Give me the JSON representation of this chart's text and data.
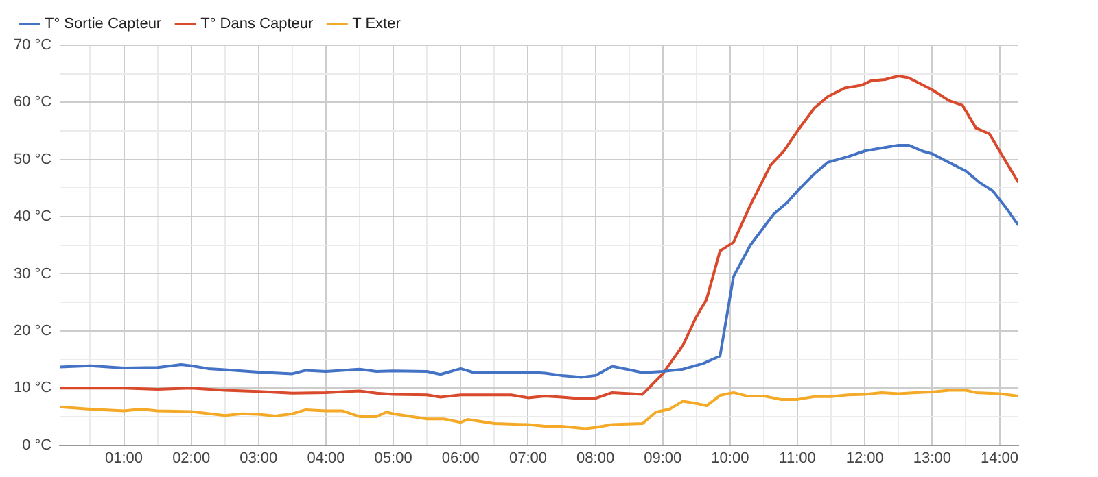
{
  "chart_data": {
    "type": "line",
    "legend": "top left",
    "grid": true,
    "marker": "none",
    "line_style": "solid",
    "xlim": [
      0.05,
      14.28
    ],
    "xticks": [
      {
        "value": 0.5,
        "label": null
      },
      {
        "value": 1,
        "label": "01:00"
      },
      {
        "value": 1.5,
        "label": null
      },
      {
        "value": 2,
        "label": "02:00"
      },
      {
        "value": 2.5,
        "label": null
      },
      {
        "value": 3,
        "label": "03:00"
      },
      {
        "value": 3.5,
        "label": null
      },
      {
        "value": 4,
        "label": "04:00"
      },
      {
        "value": 4.5,
        "label": null
      },
      {
        "value": 5,
        "label": "05:00"
      },
      {
        "value": 5.5,
        "label": null
      },
      {
        "value": 6,
        "label": "06:00"
      },
      {
        "value": 6.5,
        "label": null
      },
      {
        "value": 7,
        "label": "07:00"
      },
      {
        "value": 7.5,
        "label": null
      },
      {
        "value": 8,
        "label": "08:00"
      },
      {
        "value": 8.5,
        "label": null
      },
      {
        "value": 9,
        "label": "09:00"
      },
      {
        "value": 9.5,
        "label": null
      },
      {
        "value": 10,
        "label": "10:00"
      },
      {
        "value": 10.5,
        "label": null
      },
      {
        "value": 11,
        "label": "11:00"
      },
      {
        "value": 11.5,
        "label": null
      },
      {
        "value": 12,
        "label": "12:00"
      },
      {
        "value": 12.5,
        "label": null
      },
      {
        "value": 13,
        "label": "13:00"
      },
      {
        "value": 13.5,
        "label": null
      },
      {
        "value": 14,
        "label": "14:00"
      }
    ],
    "ylim": [
      0,
      70
    ],
    "yticks": [
      {
        "value": 0,
        "label": "0 °C"
      },
      {
        "value": 5,
        "label": null
      },
      {
        "value": 10,
        "label": "10 °C"
      },
      {
        "value": 15,
        "label": null
      },
      {
        "value": 20,
        "label": "20 °C"
      },
      {
        "value": 25,
        "label": null
      },
      {
        "value": 30,
        "label": "30 °C"
      },
      {
        "value": 35,
        "label": null
      },
      {
        "value": 40,
        "label": "40 °C"
      },
      {
        "value": 45,
        "label": null
      },
      {
        "value": 50,
        "label": "50 °C"
      },
      {
        "value": 55,
        "label": null
      },
      {
        "value": 60,
        "label": "60 °C"
      },
      {
        "value": 65,
        "label": null
      },
      {
        "value": 70,
        "label": "70 °C"
      }
    ],
    "series": [
      {
        "name": "T° Sortie Capteur",
        "color": "#4472c4",
        "x": [
          0.05,
          0.5,
          1,
          1.5,
          1.85,
          2,
          2.25,
          2.5,
          3,
          3.5,
          3.7,
          4,
          4.5,
          4.75,
          5,
          5.5,
          5.7,
          6,
          6.2,
          6.5,
          7,
          7.25,
          7.5,
          7.8,
          8,
          8.25,
          8.5,
          8.7,
          9,
          9.3,
          9.6,
          9.85,
          10.05,
          10.3,
          10.65,
          10.85,
          11,
          11.25,
          11.45,
          11.75,
          12,
          12.25,
          12.5,
          12.65,
          12.85,
          13,
          13.25,
          13.5,
          13.7,
          13.9,
          14.1,
          14.28
        ],
        "values": [
          13.7,
          13.9,
          13.5,
          13.6,
          14.1,
          13.9,
          13.4,
          13.2,
          12.8,
          12.5,
          13.1,
          12.9,
          13.3,
          12.9,
          13,
          12.9,
          12.4,
          13.4,
          12.7,
          12.7,
          12.8,
          12.6,
          12.2,
          11.9,
          12.2,
          13.8,
          13.2,
          12.7,
          12.9,
          13.3,
          14.3,
          15.6,
          29.5,
          35,
          40.5,
          42.5,
          44.5,
          47.5,
          49.5,
          50.5,
          51.5,
          52,
          52.5,
          52.5,
          51.5,
          51,
          49.5,
          48,
          46,
          44.5,
          41.5,
          38.5
        ]
      },
      {
        "name": "T° Dans Capteur",
        "color": "#d9492b",
        "x": [
          0.05,
          0.5,
          1,
          1.5,
          2,
          2.5,
          3,
          3.5,
          4,
          4.5,
          4.75,
          5,
          5.5,
          5.7,
          6,
          6.5,
          6.75,
          7,
          7.25,
          7.5,
          7.8,
          8,
          8.25,
          8.7,
          9,
          9.3,
          9.5,
          9.65,
          9.85,
          10.05,
          10.3,
          10.6,
          10.8,
          11,
          11.25,
          11.45,
          11.7,
          11.95,
          12.1,
          12.3,
          12.5,
          12.65,
          13,
          13.25,
          13.45,
          13.65,
          13.85,
          14.05,
          14.28
        ],
        "values": [
          10,
          10,
          10,
          9.8,
          10,
          9.6,
          9.4,
          9.1,
          9.2,
          9.5,
          9.1,
          8.9,
          8.8,
          8.4,
          8.8,
          8.8,
          8.8,
          8.3,
          8.6,
          8.4,
          8.1,
          8.2,
          9.2,
          8.9,
          12.5,
          17.5,
          22.5,
          25.5,
          34,
          35.5,
          42,
          49,
          51.5,
          55,
          59,
          61,
          62.5,
          63,
          63.8,
          64,
          64.6,
          64.3,
          62.2,
          60.3,
          59.5,
          55.5,
          54.5,
          50.5,
          46
        ]
      },
      {
        "name": "T Exter",
        "color": "#f4a927",
        "x": [
          0.05,
          0.5,
          1,
          1.25,
          1.5,
          2,
          2.5,
          2.75,
          3,
          3.25,
          3.5,
          3.7,
          4,
          4.25,
          4.5,
          4.75,
          4.9,
          5,
          5.5,
          5.75,
          6,
          6.1,
          6.5,
          7,
          7.25,
          7.5,
          7.85,
          8,
          8.25,
          8.7,
          8.9,
          9.1,
          9.3,
          9.5,
          9.65,
          9.85,
          10.05,
          10.25,
          10.5,
          10.75,
          11,
          11.25,
          11.5,
          11.75,
          12,
          12.25,
          12.5,
          12.75,
          13,
          13.25,
          13.5,
          13.65,
          14,
          14.28
        ],
        "values": [
          6.7,
          6.3,
          6,
          6.3,
          6,
          5.9,
          5.2,
          5.5,
          5.4,
          5.1,
          5.5,
          6.2,
          6,
          6,
          5,
          5,
          5.8,
          5.5,
          4.6,
          4.6,
          4,
          4.5,
          3.8,
          3.6,
          3.3,
          3.3,
          2.9,
          3.1,
          3.6,
          3.8,
          5.8,
          6.3,
          7.7,
          7.3,
          6.9,
          8.7,
          9.2,
          8.6,
          8.6,
          8,
          8,
          8.5,
          8.5,
          8.8,
          8.9,
          9.2,
          9,
          9.2,
          9.3,
          9.6,
          9.6,
          9.2,
          9,
          8.6
        ]
      }
    ]
  }
}
